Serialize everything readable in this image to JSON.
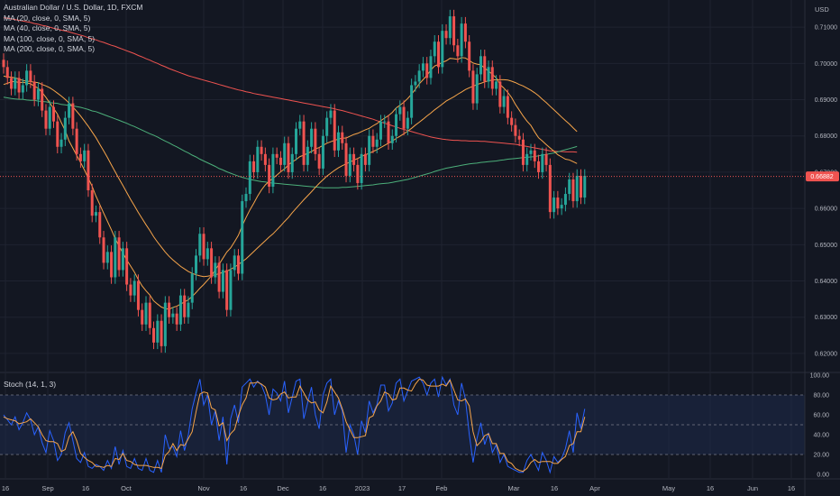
{
  "title": "Australian Dollar / U.S. Dollar, 1D, FXCM",
  "currency_label": "USD",
  "indicators": [
    {
      "label": "MA (20, close, 0, SMA, 5)",
      "color": "#f7a54a"
    },
    {
      "label": "MA (40, close, 0, SMA, 5)",
      "color": "#f7a54a"
    },
    {
      "label": "MA (100, close, 0, SMA, 5)",
      "color": "#4caf7a"
    },
    {
      "label": "MA (200, close, 0, SMA, 5)",
      "color": "#ef5350"
    }
  ],
  "stoch_label": "Stoch (14, 1, 3)",
  "colors": {
    "background": "#131722",
    "up": "#26a69a",
    "down": "#ef5350",
    "ma20": "#f7a54a",
    "ma40": "#f7a54a",
    "ma100": "#4caf7a",
    "ma200": "#ef5350",
    "stoch_k": "#2962ff",
    "stoch_d": "#f7a54a",
    "price_line": "#ef5350",
    "stoch_band": "#1e2a4a"
  },
  "chart_data": {
    "type": "candlestick",
    "title": "Australian Dollar / U.S. Dollar, 1D, FXCM",
    "ylim": [
      0.615,
      0.7175
    ],
    "price_ticks": [
      "0.71000",
      "0.70000",
      "0.69000",
      "0.68000",
      "0.67000",
      "0.66000",
      "0.65000",
      "0.64000",
      "0.63000",
      "0.62000"
    ],
    "current_price": "0.66882",
    "x_tick_labels": [
      "16",
      "Sep",
      "16",
      "Oct",
      "Nov",
      "16",
      "Dec",
      "16",
      "2023",
      "17",
      "Feb",
      "Mar",
      "16",
      "Apr",
      "May",
      "16",
      "Jun",
      "16"
    ],
    "stoch_ylim": [
      0,
      100
    ],
    "stoch_ticks": [
      "100.00",
      "80.00",
      "60.00",
      "40.00",
      "20.00",
      "0.00"
    ],
    "stoch_bands": [
      20,
      80
    ],
    "grid": true,
    "closes": [
      0.699,
      0.696,
      0.693,
      0.696,
      0.692,
      0.694,
      0.698,
      0.695,
      0.69,
      0.693,
      0.687,
      0.682,
      0.688,
      0.684,
      0.677,
      0.679,
      0.685,
      0.689,
      0.682,
      0.675,
      0.673,
      0.676,
      0.665,
      0.658,
      0.659,
      0.652,
      0.645,
      0.648,
      0.641,
      0.652,
      0.643,
      0.649,
      0.639,
      0.636,
      0.64,
      0.632,
      0.628,
      0.634,
      0.627,
      0.623,
      0.629,
      0.622,
      0.634,
      0.63,
      0.631,
      0.628,
      0.636,
      0.63,
      0.634,
      0.642,
      0.647,
      0.653,
      0.646,
      0.649,
      0.641,
      0.645,
      0.637,
      0.643,
      0.632,
      0.643,
      0.647,
      0.642,
      0.662,
      0.664,
      0.673,
      0.67,
      0.677,
      0.675,
      0.672,
      0.666,
      0.675,
      0.674,
      0.672,
      0.678,
      0.67,
      0.675,
      0.682,
      0.684,
      0.672,
      0.677,
      0.682,
      0.675,
      0.671,
      0.68,
      0.685,
      0.687,
      0.676,
      0.681,
      0.678,
      0.669,
      0.675,
      0.672,
      0.667,
      0.675,
      0.672,
      0.68,
      0.677,
      0.679,
      0.684,
      0.684,
      0.678,
      0.68,
      0.686,
      0.688,
      0.682,
      0.685,
      0.694,
      0.695,
      0.698,
      0.7,
      0.696,
      0.702,
      0.706,
      0.699,
      0.709,
      0.707,
      0.713,
      0.705,
      0.702,
      0.711,
      0.706,
      0.698,
      0.689,
      0.697,
      0.702,
      0.695,
      0.699,
      0.693,
      0.695,
      0.688,
      0.691,
      0.685,
      0.683,
      0.68,
      0.679,
      0.672,
      0.675,
      0.676,
      0.673,
      0.67,
      0.675,
      0.672,
      0.659,
      0.663,
      0.66,
      0.661,
      0.664,
      0.668,
      0.662,
      0.669,
      0.663,
      0.669
    ],
    "ma20": [
      0.6942,
      0.6945,
      0.6949,
      0.695,
      0.6947,
      0.6948,
      0.6946,
      0.6944,
      0.6937,
      0.6932,
      0.692,
      0.6906,
      0.6891,
      0.6876,
      0.686,
      0.6837,
      0.6815,
      0.6786,
      0.6766,
      0.6746,
      0.6727,
      0.6706,
      0.6684,
      0.6661,
      0.6634,
      0.6611,
      0.6587,
      0.6564,
      0.6541,
      0.6517,
      0.6496,
      0.6477,
      0.6458,
      0.6441,
      0.6424,
      0.6404,
      0.6386,
      0.6373,
      0.6361,
      0.6345,
      0.6336,
      0.6328,
      0.6324,
      0.6322,
      0.6327,
      0.633,
      0.6336,
      0.6342,
      0.6348,
      0.6357,
      0.6368,
      0.638,
      0.639,
      0.6402,
      0.6414,
      0.6431,
      0.6446,
      0.6463,
      0.648,
      0.6491,
      0.6508,
      0.6526,
      0.6552,
      0.6575,
      0.6596,
      0.6614,
      0.6634,
      0.6651,
      0.6665,
      0.6675,
      0.6683,
      0.6692,
      0.6701,
      0.6709,
      0.672,
      0.6728,
      0.6735,
      0.6743,
      0.6747,
      0.6752,
      0.6757,
      0.6764,
      0.6768,
      0.6774,
      0.678,
      0.6784,
      0.6788,
      0.6791,
      0.6794,
      0.6794,
      0.6799,
      0.6804,
      0.6807,
      0.6812,
      0.6817,
      0.6821,
      0.6828,
      0.6834,
      0.6842,
      0.6849,
      0.6856,
      0.6865,
      0.6877,
      0.6885,
      0.6893,
      0.6903,
      0.6915,
      0.6929,
      0.6944,
      0.6955,
      0.6967,
      0.6982,
      0.6993,
      0.6997,
      0.7003,
      0.7007,
      0.7014,
      0.7013,
      0.7011,
      0.7016,
      0.7015,
      0.7008,
      0.7001,
      0.6998,
      0.6996,
      0.6987,
      0.6979,
      0.697,
      0.696,
      0.6942,
      0.6932,
      0.692,
      0.6906,
      0.6887,
      0.6871,
      0.6855,
      0.6841,
      0.6829,
      0.6811,
      0.6795,
      0.6786,
      0.6776,
      0.6767,
      0.6758,
      0.6748,
      0.6742,
      0.6736,
      0.6734,
      0.6729,
      0.6724
    ],
    "ma40": [
      0.6965,
      0.6963,
      0.6962,
      0.696,
      0.6957,
      0.6953,
      0.6951,
      0.695,
      0.6948,
      0.6947,
      0.6942,
      0.6938,
      0.6933,
      0.6926,
      0.6918,
      0.691,
      0.6901,
      0.6891,
      0.688,
      0.6868,
      0.6855,
      0.6841,
      0.6827,
      0.6811,
      0.6795,
      0.6777,
      0.6759,
      0.674,
      0.672,
      0.6701,
      0.6682,
      0.6663,
      0.6644,
      0.6625,
      0.6607,
      0.6589,
      0.6572,
      0.6555,
      0.6539,
      0.6522,
      0.6507,
      0.6493,
      0.648,
      0.6468,
      0.6458,
      0.6449,
      0.644,
      0.6433,
      0.6426,
      0.6421,
      0.6417,
      0.6414,
      0.6412,
      0.6413,
      0.6415,
      0.6417,
      0.642,
      0.6424,
      0.6427,
      0.6432,
      0.6438,
      0.6445,
      0.6453,
      0.6461,
      0.6471,
      0.6481,
      0.6491,
      0.6501,
      0.6511,
      0.6521,
      0.653,
      0.6541,
      0.6552,
      0.6564,
      0.6575,
      0.6588,
      0.66,
      0.6612,
      0.6624,
      0.6635,
      0.6646,
      0.6658,
      0.6669,
      0.6679,
      0.6689,
      0.6697,
      0.6705,
      0.6712,
      0.6718,
      0.6723,
      0.6728,
      0.6733,
      0.6738,
      0.6743,
      0.6748,
      0.6752,
      0.6757,
      0.6762,
      0.6768,
      0.6774,
      0.678,
      0.6786,
      0.6793,
      0.6799,
      0.6806,
      0.6813,
      0.6821,
      0.683,
      0.6838,
      0.6846,
      0.6855,
      0.6863,
      0.6872,
      0.688,
      0.6888,
      0.6896,
      0.6902,
      0.6908,
      0.6915,
      0.6921,
      0.6928,
      0.6933,
      0.6937,
      0.6942,
      0.6945,
      0.6949,
      0.6952,
      0.6954,
      0.6955,
      0.6955,
      0.6955,
      0.6954,
      0.6951,
      0.6947,
      0.6942,
      0.6938,
      0.6932,
      0.6926,
      0.6919,
      0.6911,
      0.6901,
      0.6892,
      0.6882,
      0.6872,
      0.6862,
      0.6852,
      0.6842,
      0.6833,
      0.6822,
      0.6812
    ],
    "ma100": [
      0.6907,
      0.6905,
      0.6903,
      0.6902,
      0.6901,
      0.6901,
      0.6899,
      0.6898,
      0.6898,
      0.6896,
      0.6895,
      0.6894,
      0.6892,
      0.6891,
      0.689,
      0.6887,
      0.6886,
      0.6884,
      0.6883,
      0.6881,
      0.6879,
      0.6876,
      0.6873,
      0.6869,
      0.6867,
      0.6863,
      0.6859,
      0.6855,
      0.6851,
      0.6847,
      0.6843,
      0.6839,
      0.6835,
      0.683,
      0.6826,
      0.6821,
      0.6816,
      0.6811,
      0.6806,
      0.6802,
      0.6797,
      0.6791,
      0.6786,
      0.6781,
      0.6775,
      0.677,
      0.6764,
      0.6758,
      0.6753,
      0.6747,
      0.6742,
      0.6736,
      0.6731,
      0.6726,
      0.6721,
      0.6716,
      0.671,
      0.6706,
      0.6701,
      0.6697,
      0.6693,
      0.6689,
      0.6686,
      0.6683,
      0.668,
      0.6678,
      0.6676,
      0.6674,
      0.6673,
      0.6671,
      0.667,
      0.6669,
      0.6668,
      0.6667,
      0.6666,
      0.6665,
      0.6664,
      0.6663,
      0.6662,
      0.6661,
      0.666,
      0.6659,
      0.6658,
      0.6657,
      0.6657,
      0.6657,
      0.6657,
      0.6657,
      0.6658,
      0.6658,
      0.6659,
      0.666,
      0.6661,
      0.6662,
      0.6663,
      0.6664,
      0.6665,
      0.6667,
      0.6668,
      0.6669,
      0.667,
      0.6672,
      0.6674,
      0.6676,
      0.6678,
      0.668,
      0.6683,
      0.6686,
      0.6689,
      0.6692,
      0.6695,
      0.6698,
      0.6702,
      0.6705,
      0.6708,
      0.6711,
      0.6713,
      0.6715,
      0.6717,
      0.6719,
      0.6721,
      0.6723,
      0.6724,
      0.6725,
      0.6727,
      0.6728,
      0.6729,
      0.673,
      0.6731,
      0.6733,
      0.6734,
      0.6736,
      0.6737,
      0.6738,
      0.6739,
      0.674,
      0.6741,
      0.6742,
      0.6743,
      0.6745,
      0.6747,
      0.6749,
      0.6751,
      0.6753,
      0.6756,
      0.6759,
      0.6762,
      0.6765,
      0.6768,
      0.6771
    ],
    "ma200": [
      0.7126,
      0.7125,
      0.7123,
      0.7121,
      0.7119,
      0.7117,
      0.7115,
      0.7113,
      0.711,
      0.7108,
      0.7105,
      0.7103,
      0.71,
      0.7097,
      0.7095,
      0.7092,
      0.709,
      0.7087,
      0.7084,
      0.7081,
      0.7078,
      0.7075,
      0.7071,
      0.7068,
      0.7065,
      0.7061,
      0.7058,
      0.7054,
      0.705,
      0.7047,
      0.7043,
      0.7039,
      0.7035,
      0.7031,
      0.7027,
      0.7022,
      0.7018,
      0.7013,
      0.7009,
      0.7004,
      0.7,
      0.6995,
      0.6991,
      0.6986,
      0.6982,
      0.6978,
      0.6974,
      0.697,
      0.6966,
      0.6963,
      0.696,
      0.6957,
      0.6954,
      0.6951,
      0.6948,
      0.6945,
      0.6942,
      0.6939,
      0.6936,
      0.6933,
      0.693,
      0.6927,
      0.6925,
      0.6922,
      0.692,
      0.6917,
      0.6915,
      0.6913,
      0.6911,
      0.6909,
      0.6907,
      0.6905,
      0.6903,
      0.6901,
      0.6899,
      0.6897,
      0.6895,
      0.6893,
      0.6891,
      0.6889,
      0.6887,
      0.6885,
      0.6883,
      0.6881,
      0.6879,
      0.6877,
      0.6875,
      0.6872,
      0.687,
      0.6867,
      0.6864,
      0.6861,
      0.6858,
      0.6855,
      0.6852,
      0.6849,
      0.6846,
      0.6842,
      0.6839,
      0.6835,
      0.6832,
      0.6828,
      0.6825,
      0.6821,
      0.6818,
      0.6815,
      0.6812,
      0.6809,
      0.6806,
      0.6803,
      0.68,
      0.6797,
      0.6795,
      0.6793,
      0.6791,
      0.679,
      0.6789,
      0.6788,
      0.6788,
      0.6787,
      0.6787,
      0.6786,
      0.6786,
      0.6786,
      0.6785,
      0.6785,
      0.6784,
      0.6783,
      0.6782,
      0.6781,
      0.678,
      0.6779,
      0.6778,
      0.6777,
      0.6775,
      0.6773,
      0.6771,
      0.6769,
      0.6767,
      0.6765,
      0.6763,
      0.6761,
      0.6759,
      0.6758,
      0.6757,
      0.6757,
      0.6756,
      0.6756,
      0.6756,
      0.6755
    ],
    "stoch_k": [
      60,
      55,
      50,
      58,
      45,
      52,
      62,
      55,
      40,
      48,
      32,
      22,
      44,
      34,
      14,
      20,
      42,
      52,
      34,
      16,
      12,
      22,
      8,
      6,
      10,
      8,
      4,
      14,
      6,
      28,
      10,
      24,
      8,
      6,
      16,
      6,
      4,
      16,
      4,
      2,
      14,
      2,
      40,
      26,
      28,
      18,
      44,
      24,
      40,
      66,
      82,
      96,
      70,
      80,
      50,
      64,
      34,
      58,
      10,
      56,
      70,
      52,
      88,
      92,
      96,
      88,
      94,
      90,
      80,
      60,
      86,
      82,
      74,
      94,
      62,
      78,
      94,
      96,
      56,
      72,
      88,
      60,
      46,
      80,
      92,
      96,
      60,
      74,
      64,
      22,
      50,
      40,
      20,
      54,
      42,
      74,
      62,
      70,
      90,
      90,
      64,
      72,
      92,
      96,
      74,
      84,
      94,
      96,
      98,
      92,
      80,
      92,
      96,
      78,
      98,
      90,
      96,
      70,
      60,
      92,
      76,
      40,
      12,
      36,
      52,
      30,
      42,
      22,
      30,
      12,
      20,
      8,
      6,
      4,
      2,
      2,
      14,
      20,
      12,
      4,
      22,
      14,
      2,
      18,
      12,
      16,
      26,
      44,
      22,
      62,
      46,
      66
    ],
    "stoch_d": [
      58,
      56,
      55,
      54,
      51,
      52,
      53,
      56,
      52,
      48,
      40,
      34,
      33,
      33,
      31,
      23,
      25,
      38,
      43,
      34,
      21,
      17,
      14,
      12,
      8,
      8,
      7,
      9,
      8,
      16,
      15,
      21,
      14,
      13,
      10,
      9,
      9,
      9,
      8,
      7,
      7,
      6,
      19,
      23,
      31,
      24,
      30,
      29,
      36,
      43,
      63,
      81,
      83,
      82,
      67,
      65,
      49,
      52,
      34,
      41,
      45,
      59,
      70,
      77,
      92,
      92,
      93,
      91,
      88,
      77,
      75,
      76,
      81,
      83,
      77,
      78,
      78,
      89,
      82,
      75,
      72,
      73,
      65,
      62,
      73,
      89,
      83,
      77,
      66,
      53,
      45,
      37,
      37,
      38,
      39,
      57,
      59,
      69,
      74,
      83,
      81,
      75,
      76,
      87,
      87,
      85,
      84,
      91,
      96,
      95,
      90,
      89,
      89,
      89,
      91,
      89,
      95,
      85,
      75,
      74,
      76,
      69,
      43,
      29,
      33,
      39,
      41,
      31,
      31,
      21,
      21,
      13,
      11,
      6,
      4,
      3,
      6,
      12,
      15,
      12,
      13,
      13,
      13,
      11,
      11,
      15,
      18,
      29,
      31,
      43,
      43,
      58
    ]
  }
}
